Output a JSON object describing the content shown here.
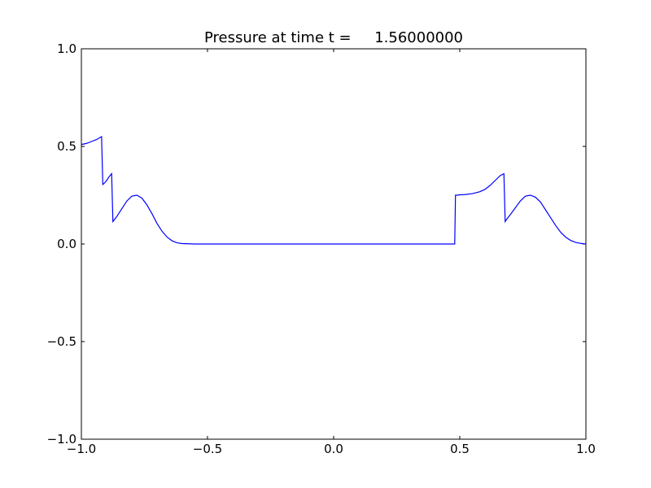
{
  "chart_data": {
    "type": "line",
    "title": "Pressure at time t =     1.56000000",
    "xlabel": "",
    "ylabel": "",
    "xlim": [
      -1.0,
      1.0
    ],
    "ylim": [
      -1.0,
      1.0
    ],
    "grid": false,
    "x_ticks": [
      -1.0,
      -0.5,
      0.0,
      0.5,
      1.0
    ],
    "x_tick_labels": [
      "−1.0",
      "−0.5",
      "0.0",
      "0.5",
      "1.0"
    ],
    "y_ticks": [
      -1.0,
      -0.5,
      0.0,
      0.5,
      1.0
    ],
    "y_tick_labels": [
      "−1.0",
      "−0.5",
      "0.0",
      "0.5",
      "1.0"
    ],
    "series": [
      {
        "color": "#0000ff",
        "x": [
          -1.0,
          -0.98,
          -0.96,
          -0.94,
          -0.92,
          -0.915,
          -0.91,
          -0.9,
          -0.89,
          -0.88,
          -0.875,
          -0.86,
          -0.84,
          -0.82,
          -0.8,
          -0.78,
          -0.76,
          -0.74,
          -0.72,
          -0.7,
          -0.68,
          -0.66,
          -0.64,
          -0.62,
          -0.6,
          -0.55,
          -0.5,
          -0.4,
          -0.3,
          -0.2,
          -0.1,
          0.0,
          0.1,
          0.2,
          0.3,
          0.4,
          0.48,
          0.483,
          0.49,
          0.5,
          0.52,
          0.55,
          0.58,
          0.6,
          0.62,
          0.64,
          0.66,
          0.675,
          0.68,
          0.685,
          0.7,
          0.72,
          0.74,
          0.76,
          0.78,
          0.8,
          0.82,
          0.84,
          0.86,
          0.88,
          0.9,
          0.92,
          0.94,
          0.96,
          0.98,
          1.0
        ],
        "y": [
          0.51,
          0.515,
          0.525,
          0.535,
          0.55,
          0.305,
          0.31,
          0.325,
          0.345,
          0.36,
          0.115,
          0.14,
          0.18,
          0.22,
          0.245,
          0.25,
          0.235,
          0.2,
          0.155,
          0.105,
          0.065,
          0.035,
          0.016,
          0.006,
          0.002,
          0.0,
          0.0,
          0.0,
          0.0,
          0.0,
          0.0,
          0.0,
          0.0,
          0.0,
          0.0,
          0.0,
          0.0,
          0.25,
          0.25,
          0.252,
          0.253,
          0.258,
          0.268,
          0.28,
          0.3,
          0.325,
          0.35,
          0.36,
          0.115,
          0.125,
          0.15,
          0.185,
          0.22,
          0.245,
          0.25,
          0.24,
          0.215,
          0.175,
          0.135,
          0.095,
          0.06,
          0.035,
          0.018,
          0.008,
          0.003,
          0.0
        ]
      }
    ]
  }
}
